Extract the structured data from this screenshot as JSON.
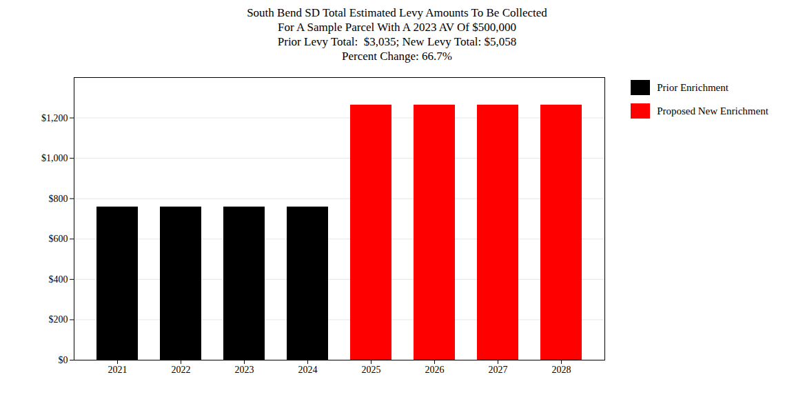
{
  "chart_data": {
    "type": "bar",
    "title": "South Bend SD Total Estimated Levy Amounts To Be Collected\nFor A Sample Parcel With A 2023 AV Of $500,000\nPrior Levy Total:  $3,035; New Levy Total: $5,058\nPercent Change: 66.7%",
    "categories": [
      "2021",
      "2022",
      "2023",
      "2024",
      "2025",
      "2026",
      "2027",
      "2028"
    ],
    "series": [
      {
        "name": "Prior Enrichment",
        "color": "#000000",
        "values": [
          759,
          759,
          759,
          759,
          null,
          null,
          null,
          null
        ]
      },
      {
        "name": "Proposed New Enrichment",
        "color": "#ff0000",
        "values": [
          null,
          null,
          null,
          null,
          1264,
          1264,
          1264,
          1264
        ]
      }
    ],
    "ylim": [
      0,
      1400
    ],
    "yticks": [
      {
        "value": 0,
        "label": "$0"
      },
      {
        "value": 200,
        "label": "$200"
      },
      {
        "value": 400,
        "label": "$400"
      },
      {
        "value": 600,
        "label": "$600"
      },
      {
        "value": 800,
        "label": "$800"
      },
      {
        "value": 1000,
        "label": "$1,000"
      },
      {
        "value": 1200,
        "label": "$1,200"
      }
    ],
    "grid": true,
    "legend": "right"
  }
}
